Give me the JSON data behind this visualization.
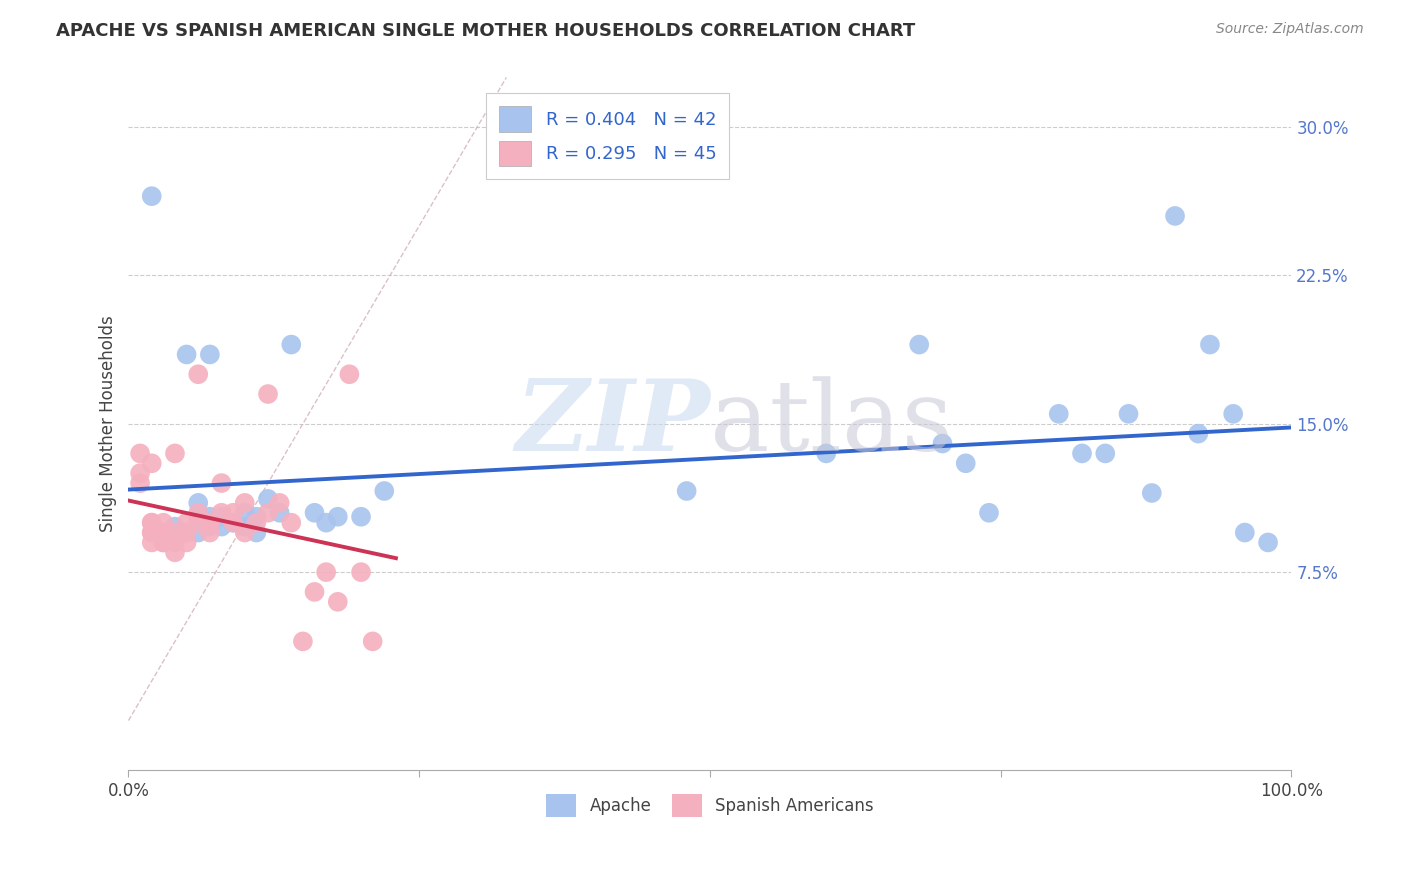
{
  "title": "APACHE VS SPANISH AMERICAN SINGLE MOTHER HOUSEHOLDS CORRELATION CHART",
  "source": "Source: ZipAtlas.com",
  "xlabel": "",
  "ylabel": "Single Mother Households",
  "xlim": [
    0.0,
    1.0
  ],
  "ylim": [
    -0.025,
    0.325
  ],
  "xticks": [
    0.0,
    0.25,
    0.5,
    0.75,
    1.0
  ],
  "xtick_labels": [
    "0.0%",
    "",
    "",
    "",
    "100.0%"
  ],
  "yticks": [
    0.075,
    0.15,
    0.225,
    0.3
  ],
  "ytick_labels": [
    "7.5%",
    "15.0%",
    "22.5%",
    "30.0%"
  ],
  "background_color": "#ffffff",
  "watermark_zip": "ZIP",
  "watermark_atlas": "atlas",
  "legend_r1": "0.404",
  "legend_n1": "42",
  "legend_r2": "0.295",
  "legend_n2": "45",
  "apache_color": "#a8c4ee",
  "spanish_color": "#f5b0bf",
  "apache_line_color": "#3366cc",
  "spanish_line_color": "#cc3355",
  "diag_color": "#d4b0b8",
  "apache_x": [
    0.02,
    0.04,
    0.05,
    0.05,
    0.06,
    0.06,
    0.06,
    0.07,
    0.07,
    0.07,
    0.08,
    0.08,
    0.09,
    0.1,
    0.1,
    0.11,
    0.11,
    0.12,
    0.13,
    0.14,
    0.16,
    0.17,
    0.18,
    0.2,
    0.22,
    0.48,
    0.6,
    0.68,
    0.7,
    0.72,
    0.74,
    0.8,
    0.82,
    0.84,
    0.86,
    0.88,
    0.9,
    0.92,
    0.93,
    0.95,
    0.96,
    0.98
  ],
  "apache_y": [
    0.265,
    0.098,
    0.095,
    0.185,
    0.095,
    0.103,
    0.11,
    0.098,
    0.103,
    0.185,
    0.098,
    0.103,
    0.1,
    0.098,
    0.105,
    0.103,
    0.095,
    0.112,
    0.105,
    0.19,
    0.105,
    0.1,
    0.103,
    0.103,
    0.116,
    0.116,
    0.135,
    0.19,
    0.14,
    0.13,
    0.105,
    0.155,
    0.135,
    0.135,
    0.155,
    0.115,
    0.255,
    0.145,
    0.19,
    0.155,
    0.095,
    0.09
  ],
  "spanish_x": [
    0.01,
    0.01,
    0.01,
    0.02,
    0.02,
    0.02,
    0.02,
    0.02,
    0.02,
    0.03,
    0.03,
    0.03,
    0.03,
    0.03,
    0.04,
    0.04,
    0.04,
    0.04,
    0.05,
    0.05,
    0.05,
    0.06,
    0.06,
    0.06,
    0.07,
    0.07,
    0.07,
    0.08,
    0.08,
    0.09,
    0.09,
    0.1,
    0.1,
    0.11,
    0.12,
    0.12,
    0.13,
    0.14,
    0.15,
    0.16,
    0.17,
    0.18,
    0.19,
    0.2,
    0.21
  ],
  "spanish_y": [
    0.12,
    0.125,
    0.135,
    0.09,
    0.095,
    0.095,
    0.1,
    0.1,
    0.13,
    0.09,
    0.09,
    0.095,
    0.095,
    0.1,
    0.085,
    0.09,
    0.095,
    0.135,
    0.09,
    0.095,
    0.1,
    0.1,
    0.105,
    0.175,
    0.095,
    0.1,
    0.1,
    0.105,
    0.12,
    0.1,
    0.105,
    0.095,
    0.11,
    0.1,
    0.105,
    0.165,
    0.11,
    0.1,
    0.04,
    0.065,
    0.075,
    0.06,
    0.175,
    0.075,
    0.04
  ]
}
